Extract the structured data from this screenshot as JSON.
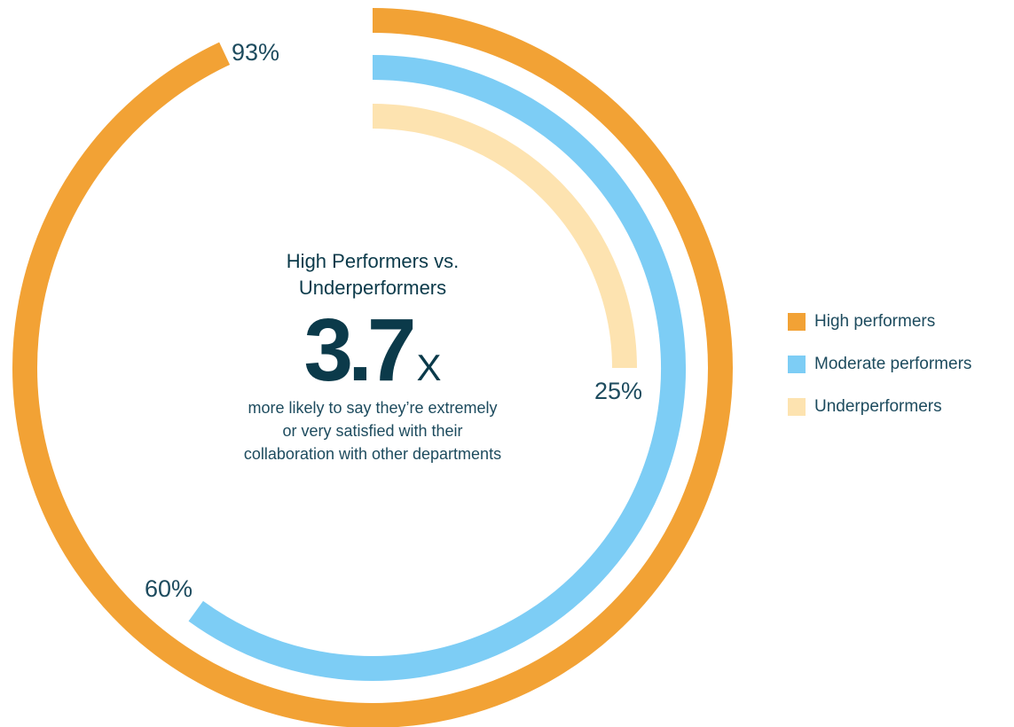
{
  "chart_data": {
    "type": "radial-bar",
    "center_title_lines": [
      "High Performers vs.",
      "Underperformers"
    ],
    "center_value": "3.7",
    "center_unit": "X",
    "center_description_lines": [
      "more likely to say they’re extremely",
      "or very satisfied with their",
      "collaboration with other departments"
    ],
    "series": [
      {
        "name": "High performers",
        "value": 93,
        "label": "93%",
        "color": "#f2a235"
      },
      {
        "name": "Moderate performers",
        "value": 60,
        "label": "60%",
        "color": "#7dcdf5"
      },
      {
        "name": "Underperformers",
        "value": 25,
        "label": "25%",
        "color": "#fde3b0"
      }
    ],
    "max": 100,
    "legend_position": "right"
  }
}
